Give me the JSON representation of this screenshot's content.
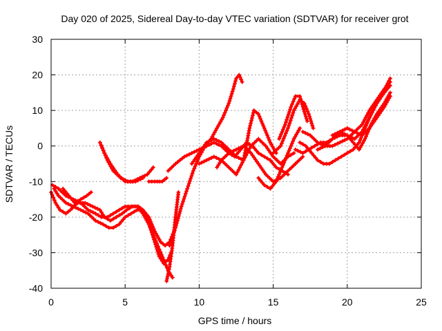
{
  "chart_data": {
    "type": "scatter",
    "title": "Day 020 of 2025, Sidereal Day-to-day VTEC variation (SDTVAR) for receiver grot",
    "xlabel": "GPS time / hours",
    "ylabel": "SDTVAR / TECUs",
    "xlim": [
      0,
      25
    ],
    "ylim": [
      -40,
      30
    ],
    "x_ticks": [
      0,
      5,
      10,
      15,
      20,
      25
    ],
    "y_ticks": [
      -40,
      -30,
      -20,
      -10,
      0,
      10,
      20,
      30
    ],
    "x_tick_labels": [
      "0",
      "5",
      "10",
      "15",
      "20",
      "25"
    ],
    "y_tick_labels": [
      "-40",
      "-30",
      "-20",
      "-10",
      "0",
      "10",
      "20",
      "30"
    ],
    "grid": true,
    "marker": "+",
    "series_color": "#ff0000",
    "series": [
      {
        "x": [
          0.0,
          0.3,
          0.6,
          1.0,
          1.3,
          1.8,
          2.3,
          2.8,
          3.3,
          3.6,
          4.0,
          4.4,
          4.8,
          5.1,
          5.5,
          5.9,
          6.2,
          6.5,
          6.7,
          7.0,
          7.3,
          7.6,
          7.9,
          8.1
        ],
        "y": [
          -13,
          -16,
          -18,
          -19,
          -18,
          -16,
          -16,
          -17,
          -18,
          -20,
          -21,
          -20,
          -19,
          -18,
          -17,
          -17,
          -18,
          -20,
          -23,
          -27,
          -31,
          -33,
          -32,
          -30
        ]
      },
      {
        "x": [
          0.2,
          0.5,
          1.0,
          1.5,
          2.0,
          2.5,
          3.0,
          3.5,
          3.9,
          4.2,
          4.6,
          5.0,
          5.4,
          5.8,
          6.2,
          6.6,
          7.0,
          7.4,
          7.7,
          8.0,
          8.3
        ],
        "y": [
          -12,
          -14,
          -16,
          -17,
          -18,
          -19,
          -21,
          -22,
          -23,
          -23,
          -22,
          -20,
          -19,
          -18,
          -18,
          -20,
          -24,
          -27,
          -28,
          -27,
          -24
        ]
      },
      {
        "x": [
          0.1,
          0.5,
          1.0,
          1.5,
          2.0,
          2.5,
          3.0,
          3.4,
          3.8,
          4.2,
          4.6,
          5.0,
          5.4,
          5.8,
          6.2,
          6.6,
          7.0,
          7.3,
          7.6,
          7.9,
          8.2
        ],
        "y": [
          -11,
          -12,
          -14,
          -15,
          -16,
          -18,
          -19,
          -20,
          -20,
          -19,
          -18,
          -17,
          -17,
          -17,
          -19,
          -22,
          -26,
          -29,
          -32,
          -35,
          -37
        ]
      },
      {
        "x": [
          0.8,
          1.2,
          1.6,
          2.0,
          2.4,
          2.7
        ],
        "y": [
          -12,
          -14,
          -16,
          -15,
          -14,
          -13
        ]
      },
      {
        "x": [
          3.3,
          3.6,
          4.0,
          4.5,
          5.0,
          5.5,
          6.0,
          6.5,
          6.9
        ],
        "y": [
          1,
          -2,
          -5,
          -8,
          -10,
          -10,
          -9,
          -8,
          -6
        ]
      },
      {
        "x": [
          3.4,
          3.8,
          4.2,
          4.7,
          5.2,
          5.7,
          6.2
        ],
        "y": [
          0,
          -4,
          -7,
          -9,
          -10,
          -10,
          -9
        ]
      },
      {
        "x": [
          6.6,
          7.0,
          7.5,
          7.8
        ],
        "y": [
          -10,
          -10,
          -10,
          -9
        ]
      },
      {
        "x": [
          7.8,
          8.0,
          8.2,
          8.4,
          8.6
        ],
        "y": [
          -38,
          -34,
          -28,
          -20,
          -13
        ]
      },
      {
        "x": [
          8.0,
          8.4,
          8.8,
          9.2,
          9.6,
          10.0,
          10.4,
          10.8,
          11.2,
          11.6,
          12.0,
          12.3,
          12.5,
          12.7,
          12.9
        ],
        "y": [
          -28,
          -23,
          -17,
          -12,
          -7,
          -3,
          0,
          2,
          5,
          8,
          12,
          16,
          19,
          20,
          18
        ]
      },
      {
        "x": [
          7.9,
          8.4,
          9.0,
          9.5,
          10.0,
          10.5,
          11.0,
          11.5,
          12.0,
          12.4,
          12.8,
          13.2,
          13.6,
          14.0,
          14.4,
          14.8,
          15.2,
          15.6,
          16.0
        ],
        "y": [
          -7,
          -5,
          -3,
          -2,
          -1,
          0,
          1,
          0,
          -2,
          -3,
          -1,
          1,
          0,
          -2,
          -3,
          -4,
          -6,
          -7,
          -8
        ]
      },
      {
        "x": [
          9.5,
          10.0,
          10.5,
          11.0,
          11.5,
          12.0,
          12.5,
          13.0,
          13.5,
          14.0,
          14.5,
          15.0,
          15.5,
          16.0,
          16.4
        ],
        "y": [
          -5,
          -2,
          1,
          2,
          1,
          -1,
          -3,
          -4,
          0,
          2,
          0,
          -3,
          -5,
          -3,
          -2
        ]
      },
      {
        "x": [
          10.0,
          10.5,
          11.0,
          11.5,
          12.0,
          12.5,
          13.0,
          13.4,
          13.7,
          14.0,
          14.4,
          14.8,
          15.2
        ],
        "y": [
          -5,
          -4,
          -3,
          -4,
          -6,
          -8,
          -4,
          5,
          10,
          9,
          5,
          1,
          -2
        ]
      },
      {
        "x": [
          11.2,
          11.5,
          12.0,
          12.5,
          13.0,
          13.5,
          14.0,
          14.5,
          15.0,
          15.5,
          16.0,
          16.5,
          17.0
        ],
        "y": [
          -6,
          -4,
          -2,
          -1,
          0,
          -2,
          -5,
          -8,
          -10,
          -9,
          -7,
          -5,
          -3
        ]
      },
      {
        "x": [
          14.0,
          14.4,
          14.8,
          15.2,
          15.6,
          16.0,
          16.4,
          16.8
        ],
        "y": [
          -9,
          -11,
          -12,
          -10,
          -6,
          -2,
          2,
          5
        ]
      },
      {
        "x": [
          15.0,
          15.5,
          16.0,
          16.4,
          16.8,
          17.1,
          17.4,
          17.7
        ],
        "y": [
          -2,
          0,
          5,
          10,
          13,
          12,
          9,
          5
        ]
      },
      {
        "x": [
          15.4,
          15.8,
          16.2,
          16.5,
          16.8,
          17.0,
          17.3
        ],
        "y": [
          2,
          6,
          11,
          14,
          14,
          11,
          7
        ]
      },
      {
        "x": [
          16.5,
          17.0,
          17.4,
          17.8,
          18.2,
          18.6,
          19.0,
          19.5,
          20.0,
          20.5,
          21.0,
          21.5,
          22.0,
          22.5,
          22.9
        ],
        "y": [
          -1,
          -2,
          -1,
          0,
          1,
          1,
          2,
          3,
          3,
          2,
          4,
          8,
          12,
          15,
          17
        ]
      },
      {
        "x": [
          16.8,
          17.2,
          17.6,
          18.0,
          18.4,
          18.8,
          19.2,
          19.6,
          20.0,
          20.4,
          20.8,
          21.2,
          21.6,
          22.0,
          22.4,
          22.9
        ],
        "y": [
          1,
          0,
          -2,
          -4,
          -5,
          -5,
          -4,
          -3,
          -2,
          -1,
          1,
          5,
          9,
          12,
          15,
          19
        ]
      },
      {
        "x": [
          17.0,
          17.5,
          18.0,
          18.5,
          19.0,
          19.5,
          20.0,
          20.5,
          21.0,
          21.5,
          22.0,
          22.5,
          22.9
        ],
        "y": [
          4,
          3,
          1,
          0,
          0,
          1,
          2,
          4,
          6,
          10,
          13,
          16,
          18
        ]
      },
      {
        "x": [
          18.0,
          18.5,
          19.0,
          19.5,
          20.0,
          20.5,
          21.0,
          21.5,
          22.0,
          22.5,
          22.9
        ],
        "y": [
          -1,
          0,
          2,
          4,
          5,
          4,
          3,
          5,
          8,
          11,
          14
        ]
      },
      {
        "x": [
          19.0,
          19.5,
          20.0,
          20.4,
          20.8,
          21.2,
          21.6,
          22.0,
          22.5,
          22.9
        ],
        "y": [
          3,
          4,
          3,
          1,
          -1,
          2,
          6,
          9,
          12,
          15
        ]
      }
    ]
  }
}
